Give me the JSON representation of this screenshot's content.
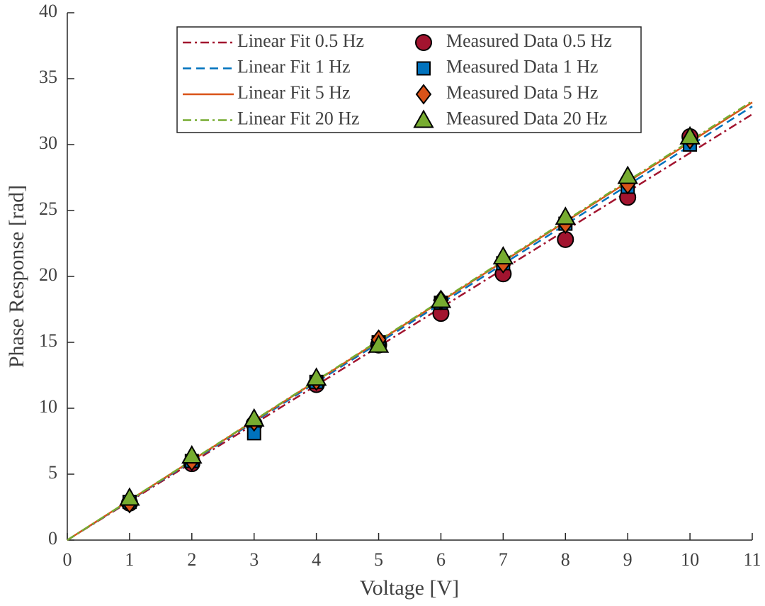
{
  "chart_data": {
    "type": "line",
    "xlabel": "Voltage [V]",
    "ylabel": "Phase Response [rad]",
    "xlim": [
      0,
      11
    ],
    "xticks": [
      0,
      1,
      2,
      3,
      4,
      5,
      6,
      7,
      8,
      9,
      10,
      11
    ],
    "ylim": [
      0,
      40
    ],
    "yticks": [
      0,
      5,
      10,
      15,
      20,
      25,
      30,
      35,
      40
    ],
    "grid": false,
    "legend": "upper center",
    "series": [
      {
        "name": "Linear Fit 0.5 Hz",
        "color": "#a2142f",
        "linestyle": "-.",
        "x": [
          0,
          11
        ],
        "values": [
          0,
          32.3
        ]
      },
      {
        "name": "Linear Fit 1 Hz",
        "color": "#0072bd",
        "linestyle": "--",
        "x": [
          0,
          11
        ],
        "values": [
          0,
          32.9
        ]
      },
      {
        "name": "Linear Fit 5 Hz",
        "color": "#d95319",
        "linestyle": "-",
        "x": [
          0,
          11
        ],
        "values": [
          0,
          33.2
        ]
      },
      {
        "name": "Linear Fit 20 Hz",
        "color": "#77ac30",
        "linestyle": "-.",
        "x": [
          0,
          11
        ],
        "values": [
          0,
          33.3
        ]
      },
      {
        "name": "Measured Data 0.5 Hz",
        "color": "#a2142f",
        "marker": "o",
        "x": [
          1,
          2,
          3,
          4,
          5,
          6,
          7,
          8,
          9,
          10
        ],
        "values": [
          2.8,
          5.8,
          8.8,
          11.8,
          14.8,
          17.2,
          20.2,
          22.8,
          26.0,
          30.6
        ]
      },
      {
        "name": "Measured Data 1 Hz",
        "color": "#0072bd",
        "marker": "s",
        "x": [
          1,
          2,
          3,
          4,
          5,
          6,
          7,
          8,
          9,
          10
        ],
        "values": [
          2.9,
          6.0,
          8.1,
          12.0,
          15.0,
          18.0,
          21.0,
          24.0,
          26.8,
          30.0
        ]
      },
      {
        "name": "Measured Data 5 Hz",
        "color": "#d95319",
        "marker": "d",
        "x": [
          1,
          2,
          3,
          4,
          5,
          6,
          7,
          8,
          9,
          10
        ],
        "values": [
          2.8,
          6.0,
          9.0,
          12.1,
          15.2,
          18.2,
          21.0,
          24.0,
          27.0,
          30.4
        ]
      },
      {
        "name": "Measured Data 20 Hz",
        "color": "#77ac30",
        "marker": "^",
        "x": [
          1,
          2,
          3,
          4,
          5,
          6,
          7,
          8,
          9,
          10
        ],
        "values": [
          3.2,
          6.4,
          9.2,
          12.3,
          14.8,
          18.2,
          21.5,
          24.5,
          27.6,
          30.6
        ]
      }
    ]
  }
}
